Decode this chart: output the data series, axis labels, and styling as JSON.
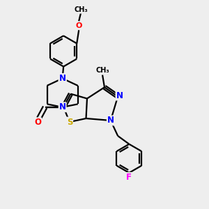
{
  "background_color": "#eeeeee",
  "bond_color": "#000000",
  "atom_colors": {
    "N": "#0000ff",
    "O": "#ff0000",
    "S": "#ccaa00",
    "F": "#ff00ff",
    "C": "#000000"
  },
  "figsize": [
    3.0,
    3.0
  ],
  "dpi": 100
}
